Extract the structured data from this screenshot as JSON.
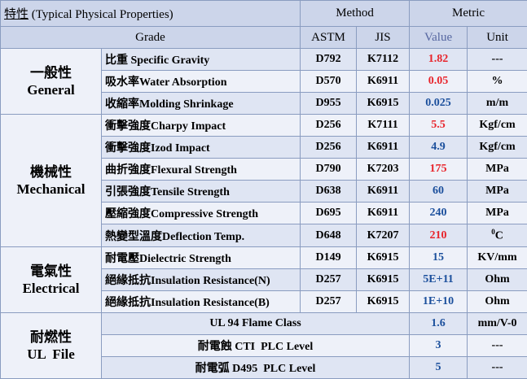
{
  "header": {
    "title_cn": "特性",
    "title_en": " (Typical Physical Properties)",
    "method": "Method",
    "metric": "Metric",
    "grade": "Grade",
    "astm": "ASTM",
    "jis": "JIS",
    "value": "Value",
    "unit": "Unit"
  },
  "categories": {
    "general": {
      "cn": "一般性",
      "en": "General"
    },
    "mechanical": {
      "cn": "機械性",
      "en": "Mechanical"
    },
    "electrical": {
      "cn": "電氣性",
      "en": "Electrical"
    },
    "ul": {
      "cn": "耐燃性",
      "en": "UL  File"
    }
  },
  "rows": [
    {
      "prop": "比重 Specific Gravity",
      "astm": "D792",
      "jis": "K7112",
      "value": "1.82",
      "value_color": "red",
      "unit": "---"
    },
    {
      "prop": "吸水率Water Absorption",
      "astm": "D570",
      "jis": "K6911",
      "value": "0.05",
      "value_color": "red",
      "unit": "%"
    },
    {
      "prop": "收縮率Molding Shrinkage",
      "astm": "D955",
      "jis": "K6915",
      "value": "0.025",
      "value_color": "blue",
      "unit": "m/m"
    },
    {
      "prop": "衝擊強度Charpy Impact",
      "astm": "D256",
      "jis": "K7111",
      "value": "5.5",
      "value_color": "red",
      "unit": "Kgf/cm"
    },
    {
      "prop": "衝擊強度Izod Impact",
      "astm": "D256",
      "jis": "K6911",
      "value": "4.9",
      "value_color": "blue",
      "unit": "Kgf/cm"
    },
    {
      "prop": "曲折強度Flexural Strength",
      "astm": "D790",
      "jis": "K7203",
      "value": "175",
      "value_color": "red",
      "unit": "MPa"
    },
    {
      "prop": "引張強度Tensile Strength",
      "astm": "D638",
      "jis": "K6911",
      "value": "60",
      "value_color": "blue",
      "unit": "MPa"
    },
    {
      "prop": "壓縮強度Compressive Strength",
      "astm": "D695",
      "jis": "K6911",
      "value": "240",
      "value_color": "blue",
      "unit": "MPa"
    },
    {
      "prop": "熱變型溫度Deflection Temp.",
      "astm": "D648",
      "jis": "K7207",
      "value": "210",
      "value_color": "red",
      "unit_sup": "0",
      "unit": "C"
    },
    {
      "prop": "耐電壓Dielectric Strength",
      "astm": "D149",
      "jis": "K6915",
      "value": "15",
      "value_color": "blue",
      "unit": "KV/mm"
    },
    {
      "prop": "絕緣抵抗Insulation Resistance(N)",
      "astm": "D257",
      "jis": "K6915",
      "value": "5E+11",
      "value_color": "blue",
      "unit": "Ohm"
    },
    {
      "prop": "絕緣抵抗Insulation Resistance(B)",
      "astm": "D257",
      "jis": "K6915",
      "value": "1E+10",
      "value_color": "blue",
      "unit": "Ohm"
    }
  ],
  "ul_rows": [
    {
      "label": "UL 94 Flame Class",
      "value": "1.6",
      "unit": "mm/V-0"
    },
    {
      "label": "耐電蝕 CTI  PLC Level",
      "value": "3",
      "unit": "---"
    },
    {
      "label": "耐電弧 D495  PLC Level",
      "value": "5",
      "unit": "---"
    }
  ],
  "colors": {
    "header_bg": "#ccd5ea",
    "row_dark": "#dfe5f3",
    "row_light": "#eef1f9",
    "red": "#e8242b",
    "blue": "#1b4f9c"
  }
}
